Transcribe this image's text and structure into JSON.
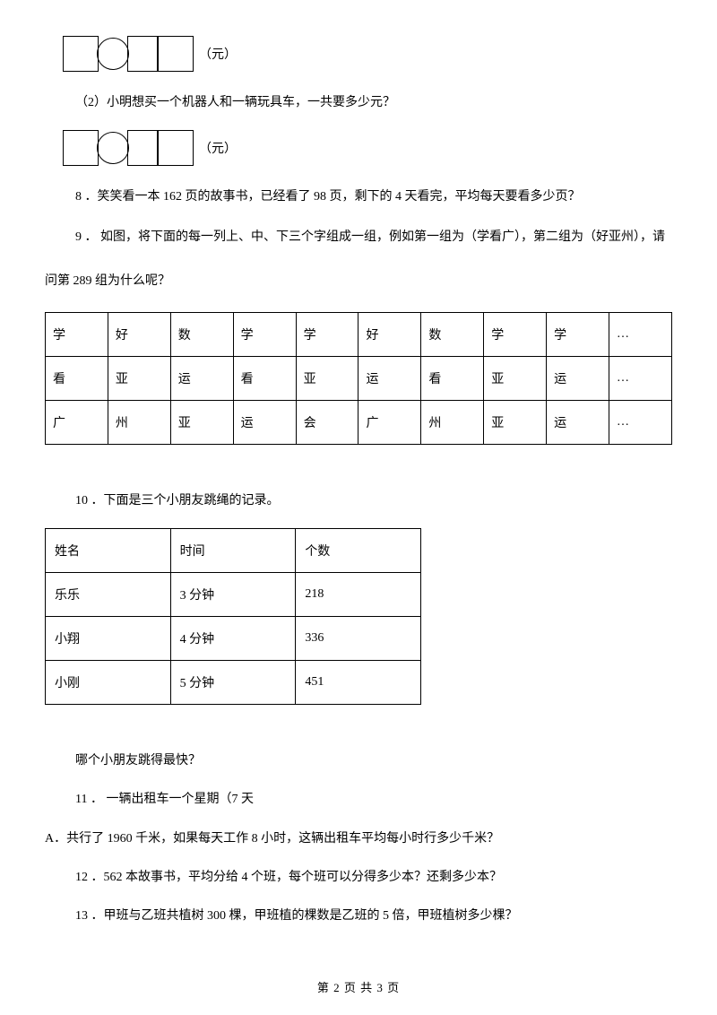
{
  "eq1": {
    "unit": "（元）"
  },
  "q7_2": "（2）小明想买一个机器人和一辆玩具车，一共要多少元？",
  "eq2": {
    "unit": "（元）"
  },
  "q8": "8 ．笑笑看一本 162 页的故事书，已经看了 98 页，剩下的 4 天看完，平均每天要看多少页？",
  "q9_line1": "9 ． 如图，将下面的每一列上、中、下三个字组成一组，例如第一组为（学看广），第二组为（好亚州），请",
  "q9_line2": "问第 289 组为什么呢？",
  "table1": {
    "rows": [
      [
        "学",
        "好",
        "数",
        "学",
        "学",
        "好",
        "数",
        "学",
        "学",
        "…"
      ],
      [
        "看",
        "亚",
        "运",
        "看",
        "亚",
        "运",
        "看",
        "亚",
        "运",
        "…"
      ],
      [
        "广",
        "州",
        "亚",
        "运",
        "会",
        "广",
        "州",
        "亚",
        "运",
        "…"
      ]
    ]
  },
  "q10": "10 ．下面是三个小朋友跳绳的记录。",
  "table2": {
    "header": [
      "姓名",
      "时间",
      "个数"
    ],
    "rows": [
      [
        "乐乐",
        "3 分钟",
        "218"
      ],
      [
        "小翔",
        "4 分钟",
        "336"
      ],
      [
        "小刚",
        "5 分钟",
        "451"
      ]
    ]
  },
  "q10_sub": "哪个小朋友跳得最快？",
  "q11": "11 ． 一辆出租车一个星期（7 天",
  "q11_a": "A．共行了 1960 千米，如果每天工作 8 小时，这辆出租车平均每小时行多少千米？",
  "q12": "12 ．562 本故事书，平均分给 4 个班，每个班可以分得多少本？还剩多少本？",
  "q13": "13 ．甲班与乙班共植树 300 棵，甲班植的棵数是乙班的 5 倍，甲班植树多少棵？",
  "footer": "第 2 页 共 3 页"
}
